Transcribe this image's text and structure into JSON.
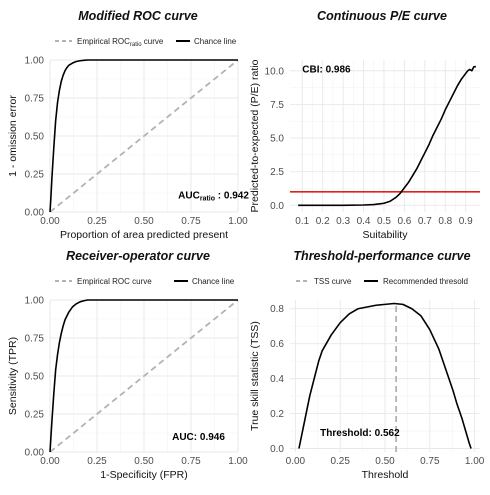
{
  "panels": {
    "roc_mod": {
      "title": "Modified ROC curve",
      "legend": [
        "Empirical ROC",
        "ratio",
        " curve",
        "Chance line"
      ],
      "annotation": [
        "AUC",
        "ratio",
        " : 0.942"
      ]
    },
    "pe": {
      "title": "Continuous P/E curve",
      "annotation": "CBI: 0.986"
    },
    "roc": {
      "title": "Receiver-operator curve",
      "legend": [
        "Empirical ROC curve",
        "Chance line"
      ],
      "annotation": "AUC: 0.946"
    },
    "tss": {
      "title": "Threshold-performance curve",
      "legend": [
        "TSS curve",
        "Recommended thresold"
      ],
      "annotation": "Threshold: 0.562"
    }
  },
  "chart_data": [
    {
      "id": "roc_mod",
      "type": "line",
      "title": "Modified ROC curve",
      "xlabel": "Proportion of area predicted present",
      "ylabel": "1 - omission error",
      "xlim": [
        0,
        1
      ],
      "ylim": [
        0,
        1
      ],
      "xticks": [
        0,
        0.25,
        0.5,
        0.75,
        1
      ],
      "xtick_labels": [
        "0.00",
        "0.25",
        "0.50",
        "0.75",
        "1.00"
      ],
      "yticks": [
        0,
        0.25,
        0.5,
        0.75,
        1
      ],
      "ytick_labels": [
        "0.00",
        "0.25",
        "0.50",
        "0.75",
        "1.00"
      ],
      "series": [
        {
          "style": "solid",
          "color": "#000000",
          "x": [
            0,
            0.005,
            0.01,
            0.02,
            0.03,
            0.04,
            0.05,
            0.06,
            0.07,
            0.08,
            0.09,
            0.1,
            0.12,
            0.14,
            0.16,
            0.18,
            0.2,
            0.25,
            0.3,
            0.4,
            0.6,
            0.8,
            1.0
          ],
          "y": [
            0,
            0.1,
            0.22,
            0.42,
            0.6,
            0.72,
            0.8,
            0.86,
            0.9,
            0.93,
            0.95,
            0.965,
            0.98,
            0.99,
            0.995,
            0.998,
            1.0,
            1.0,
            1.0,
            1.0,
            1.0,
            1.0,
            1.0
          ]
        },
        {
          "style": "dashed",
          "color": "#b3b3b3",
          "x": [
            0,
            1
          ],
          "y": [
            0,
            1
          ]
        }
      ],
      "annotation_pos": [
        0.87,
        0.11
      ]
    },
    {
      "id": "pe",
      "type": "line",
      "title": "Continuous P/E curve",
      "xlabel": "Suitability",
      "ylabel": "Predicted-to-expected (P/E) ratio",
      "xlim": [
        0.04,
        0.97
      ],
      "ylim": [
        -0.5,
        10.8
      ],
      "xticks": [
        0.1,
        0.2,
        0.3,
        0.4,
        0.5,
        0.6,
        0.7,
        0.8,
        0.9
      ],
      "xtick_labels": [
        "0.1",
        "0.2",
        "0.3",
        "0.4",
        "0.5",
        "0.6",
        "0.7",
        "0.8",
        "0.9"
      ],
      "yticks": [
        0,
        2.5,
        5,
        7.5,
        10
      ],
      "ytick_labels": [
        "0.0",
        "2.5",
        "5.0",
        "7.5",
        "10.0"
      ],
      "reference_y": 1,
      "series": [
        {
          "style": "solid",
          "color": "#000000",
          "x": [
            0.08,
            0.2,
            0.3,
            0.4,
            0.45,
            0.5,
            0.53,
            0.56,
            0.58,
            0.6,
            0.62,
            0.64,
            0.66,
            0.68,
            0.7,
            0.72,
            0.74,
            0.76,
            0.78,
            0.8,
            0.82,
            0.84,
            0.86,
            0.88,
            0.9,
            0.91,
            0.92,
            0.93,
            0.94,
            0.95
          ],
          "y": [
            0,
            0,
            0,
            0.02,
            0.05,
            0.15,
            0.3,
            0.6,
            0.9,
            1.3,
            1.7,
            2.2,
            2.7,
            3.3,
            3.9,
            4.5,
            5.2,
            5.8,
            6.4,
            7.1,
            7.7,
            8.3,
            8.9,
            9.4,
            9.8,
            10.0,
            10.1,
            10.0,
            10.3,
            10.3
          ]
        }
      ],
      "annotation_pos": [
        0.1,
        10.1
      ]
    },
    {
      "id": "roc",
      "type": "line",
      "title": "Receiver-operator curve",
      "xlabel": "1-Specificity (FPR)",
      "ylabel": "Sensitivity (TPR)",
      "xlim": [
        0,
        1
      ],
      "ylim": [
        0,
        1
      ],
      "xticks": [
        0,
        0.25,
        0.5,
        0.75,
        1
      ],
      "xtick_labels": [
        "0.00",
        "0.25",
        "0.50",
        "0.75",
        "1.00"
      ],
      "yticks": [
        0,
        0.25,
        0.5,
        0.75,
        1
      ],
      "ytick_labels": [
        "0.00",
        "0.25",
        "0.50",
        "0.75",
        "1.00"
      ],
      "series": [
        {
          "style": "solid",
          "color": "#000000",
          "x": [
            0,
            0.01,
            0.02,
            0.03,
            0.04,
            0.05,
            0.06,
            0.07,
            0.08,
            0.1,
            0.12,
            0.14,
            0.16,
            0.18,
            0.2,
            0.25,
            0.3,
            0.4,
            0.6,
            0.8,
            1.0
          ],
          "y": [
            0,
            0.2,
            0.38,
            0.54,
            0.64,
            0.72,
            0.78,
            0.83,
            0.87,
            0.92,
            0.955,
            0.975,
            0.988,
            0.995,
            1.0,
            1.0,
            1.0,
            1.0,
            1.0,
            1.0,
            1.0
          ]
        },
        {
          "style": "dashed",
          "color": "#b3b3b3",
          "x": [
            0,
            1
          ],
          "y": [
            0,
            1
          ]
        }
      ],
      "annotation_pos": [
        0.79,
        0.1
      ]
    },
    {
      "id": "tss",
      "type": "line",
      "title": "Threshold-performance curve",
      "xlabel": "Threshold",
      "ylabel": "True skill statistic (TSS)",
      "xlim": [
        -0.03,
        1.03
      ],
      "ylim": [
        -0.02,
        0.85
      ],
      "xticks": [
        0,
        0.25,
        0.5,
        0.75,
        1
      ],
      "xtick_labels": [
        "0.00",
        "0.25",
        "0.50",
        "0.75",
        "1.00"
      ],
      "yticks": [
        0,
        0.2,
        0.4,
        0.6,
        0.8
      ],
      "ytick_labels": [
        "0.0",
        "0.2",
        "0.4",
        "0.6",
        "0.8"
      ],
      "reference_x": 0.562,
      "series": [
        {
          "style": "solid",
          "color": "#000000",
          "x": [
            0.02,
            0.03,
            0.05,
            0.08,
            0.1,
            0.13,
            0.15,
            0.2,
            0.25,
            0.3,
            0.35,
            0.4,
            0.45,
            0.5,
            0.55,
            0.6,
            0.65,
            0.7,
            0.75,
            0.8,
            0.85,
            0.88,
            0.9,
            0.93,
            0.95,
            0.97,
            0.98
          ],
          "y": [
            0.0,
            0.05,
            0.15,
            0.3,
            0.38,
            0.5,
            0.56,
            0.65,
            0.72,
            0.77,
            0.8,
            0.81,
            0.82,
            0.825,
            0.83,
            0.825,
            0.8,
            0.76,
            0.68,
            0.57,
            0.42,
            0.33,
            0.26,
            0.17,
            0.1,
            0.03,
            0.0
          ]
        }
      ],
      "annotation_pos": [
        0.36,
        0.09
      ]
    }
  ]
}
